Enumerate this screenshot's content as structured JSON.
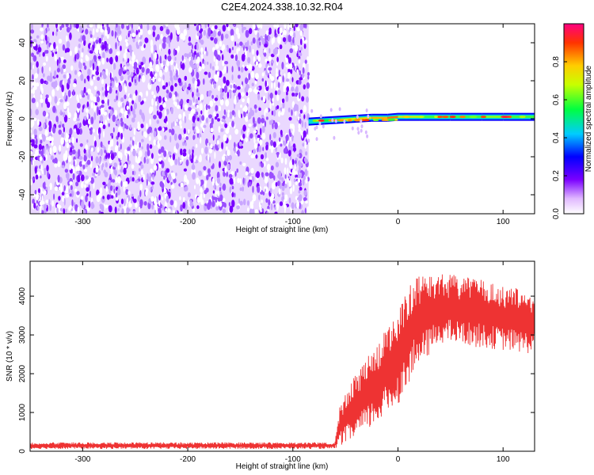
{
  "title": "C2E4.2024.338.10.32.R04",
  "chart_data": [
    {
      "type": "heatmap",
      "xlabel": "Height of straight line (km)",
      "ylabel": "Frequency (Hz)",
      "xlim": [
        -350,
        130
      ],
      "ylim": [
        -50,
        50
      ],
      "xticks": [
        -300,
        -200,
        -100,
        0,
        100
      ],
      "yticks": [
        -40,
        -20,
        0,
        20,
        40
      ],
      "noise_region_x": [
        -350,
        -85
      ],
      "signal_line": [
        {
          "x": -85,
          "y": -1.5,
          "amp": 0.45
        },
        {
          "x": -70,
          "y": -1.0,
          "amp": 0.6
        },
        {
          "x": -55,
          "y": -0.5,
          "amp": 0.7
        },
        {
          "x": -40,
          "y": 0.0,
          "amp": 0.75
        },
        {
          "x": -25,
          "y": 0.5,
          "amp": 0.8
        },
        {
          "x": -10,
          "y": 0.5,
          "amp": 0.85
        },
        {
          "x": 0,
          "y": 1.0,
          "amp": 0.7
        },
        {
          "x": 20,
          "y": 1.0,
          "amp": 0.6
        },
        {
          "x": 50,
          "y": 1.0,
          "amp": 0.6
        },
        {
          "x": 80,
          "y": 1.0,
          "amp": 0.65
        },
        {
          "x": 100,
          "y": 1.0,
          "amp": 0.6
        },
        {
          "x": 130,
          "y": 1.0,
          "amp": 0.6
        }
      ],
      "colorbar": {
        "label": "Normalized spectral amplitude",
        "lim": [
          0,
          1
        ],
        "ticks": [
          "0.0",
          "0.2",
          "0.4",
          "0.6",
          "0.8"
        ]
      }
    },
    {
      "type": "line",
      "xlabel": "Height of straight line (km)",
      "ylabel": "SNR (10 * v/v)",
      "xlim": [
        -350,
        130
      ],
      "ylim": [
        0,
        4900
      ],
      "xticks": [
        -300,
        -200,
        -100,
        0,
        100
      ],
      "yticks": [
        0,
        1000,
        2000,
        3000,
        4000
      ],
      "color": "#ee3333",
      "envelope": [
        {
          "x": -350,
          "low": 60,
          "high": 230
        },
        {
          "x": -60,
          "low": 60,
          "high": 230
        },
        {
          "x": -55,
          "low": 150,
          "high": 1200
        },
        {
          "x": -40,
          "low": 300,
          "high": 2000
        },
        {
          "x": -20,
          "low": 700,
          "high": 2800
        },
        {
          "x": 0,
          "low": 1200,
          "high": 3600
        },
        {
          "x": 15,
          "low": 2000,
          "high": 4500
        },
        {
          "x": 40,
          "low": 2800,
          "high": 4600
        },
        {
          "x": 70,
          "low": 2700,
          "high": 4500
        },
        {
          "x": 100,
          "low": 2600,
          "high": 4300
        },
        {
          "x": 130,
          "low": 2500,
          "high": 4100
        }
      ]
    }
  ]
}
